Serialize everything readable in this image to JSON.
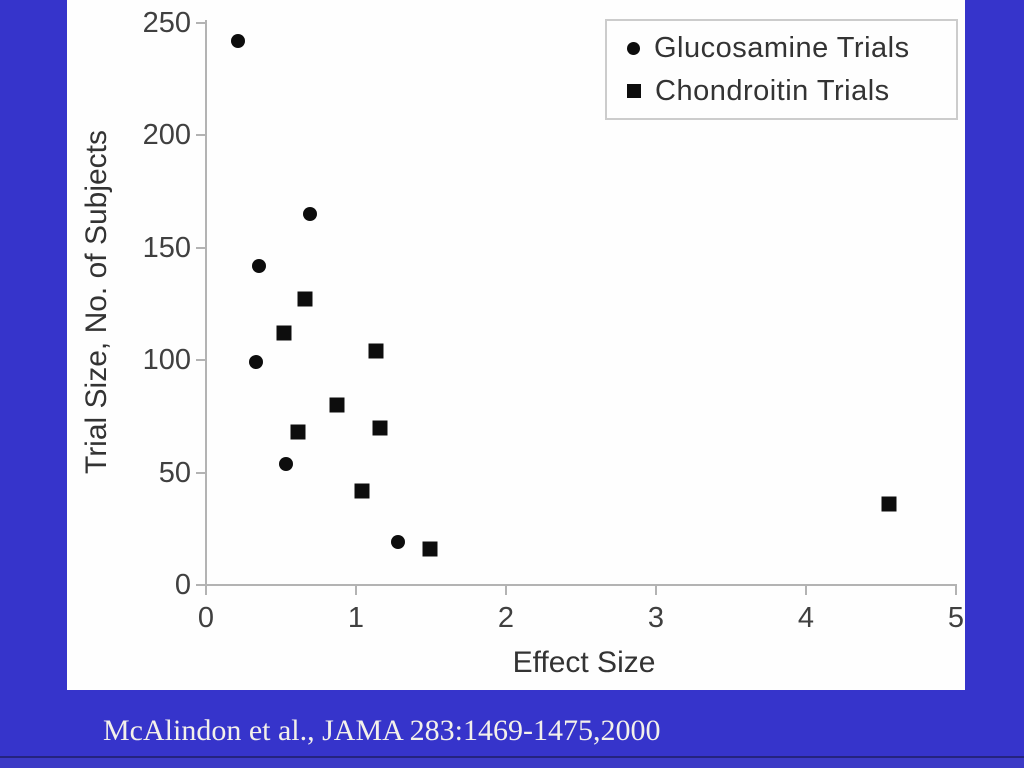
{
  "slide": {
    "citation": "McAlindon et al., JAMA 283:1469-1475,2000",
    "colors": {
      "background": "#3634cb",
      "bottom_strip": "#3c3ac6",
      "divider": "#25237f",
      "panel": "#fefefe",
      "axis": "#b3b3b3",
      "tick_text": "#404040",
      "label_text": "#333333",
      "marker": "#0d0d0d",
      "legend_border": "#cccccc",
      "citation_text": "#f3f0ea"
    }
  },
  "chart_data": {
    "type": "scatter",
    "title": "",
    "xlabel": "Effect Size",
    "ylabel": "Trial Size, No. of Subjects",
    "xlim": [
      0,
      5
    ],
    "ylim": [
      0,
      250
    ],
    "xticks": [
      0,
      1,
      2,
      3,
      4,
      5
    ],
    "yticks": [
      0,
      50,
      100,
      150,
      200,
      250
    ],
    "grid": false,
    "legend_position": "top-right",
    "series": [
      {
        "name": "Glucosamine Trials",
        "marker": "circle",
        "points": [
          [
            0.21,
            242
          ],
          [
            0.69,
            165
          ],
          [
            0.35,
            142
          ],
          [
            0.33,
            99
          ],
          [
            0.53,
            54
          ],
          [
            1.28,
            19
          ]
        ]
      },
      {
        "name": "Chondroitin Trials",
        "marker": "square",
        "points": [
          [
            0.66,
            127
          ],
          [
            0.52,
            112
          ],
          [
            1.13,
            104
          ],
          [
            0.87,
            80
          ],
          [
            0.61,
            68
          ],
          [
            1.16,
            70
          ],
          [
            1.04,
            42
          ],
          [
            1.49,
            16
          ],
          [
            4.55,
            36
          ]
        ]
      }
    ]
  }
}
